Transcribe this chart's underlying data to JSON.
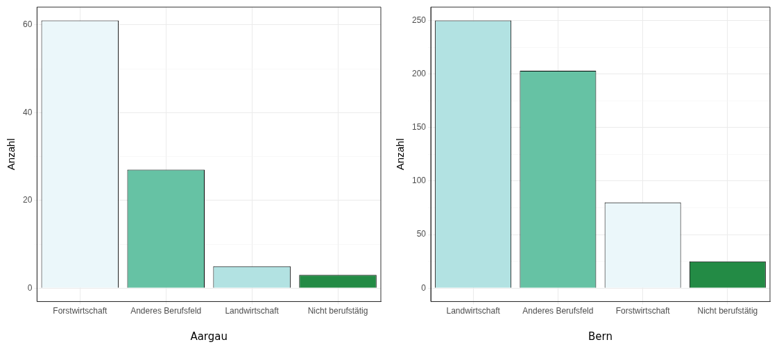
{
  "chart_data": [
    {
      "type": "bar",
      "xlabel": "Aargau",
      "ylabel": "Anzahl",
      "categories": [
        "Forstwirtschaft",
        "Anderes Berufsfeld",
        "Landwirtschaft",
        "Nicht berufstätig"
      ],
      "values": [
        61,
        27,
        5,
        3
      ],
      "colors": [
        "#ebf7fa",
        "#66c2a4",
        "#b2e2e2",
        "#238b45"
      ],
      "ylim": [
        -3.05,
        64.05
      ],
      "yticks": [
        0,
        {
          "value": 10,
          "label": null
        },
        20,
        {
          "value": 30,
          "label": null
        },
        40,
        {
          "value": 50,
          "label": null
        },
        60
      ],
      "grid": true
    },
    {
      "type": "bar",
      "xlabel": "Bern",
      "ylabel": "Anzahl",
      "categories": [
        "Landwirtschaft",
        "Anderes Berufsfeld",
        "Forstwirtschaft",
        "Nicht berufstätig"
      ],
      "values": [
        250,
        203,
        80,
        25
      ],
      "colors": [
        "#b2e2e2",
        "#66c2a4",
        "#ebf7fa",
        "#238b45"
      ],
      "ylim": [
        -12.5,
        262.5
      ],
      "yticks": [
        0,
        {
          "value": 25,
          "label": null
        },
        50,
        {
          "value": 75,
          "label": null
        },
        100,
        {
          "value": 125,
          "label": null
        },
        150,
        {
          "value": 175,
          "label": null
        },
        200,
        {
          "value": 225,
          "label": null
        },
        250
      ],
      "grid": true
    }
  ]
}
